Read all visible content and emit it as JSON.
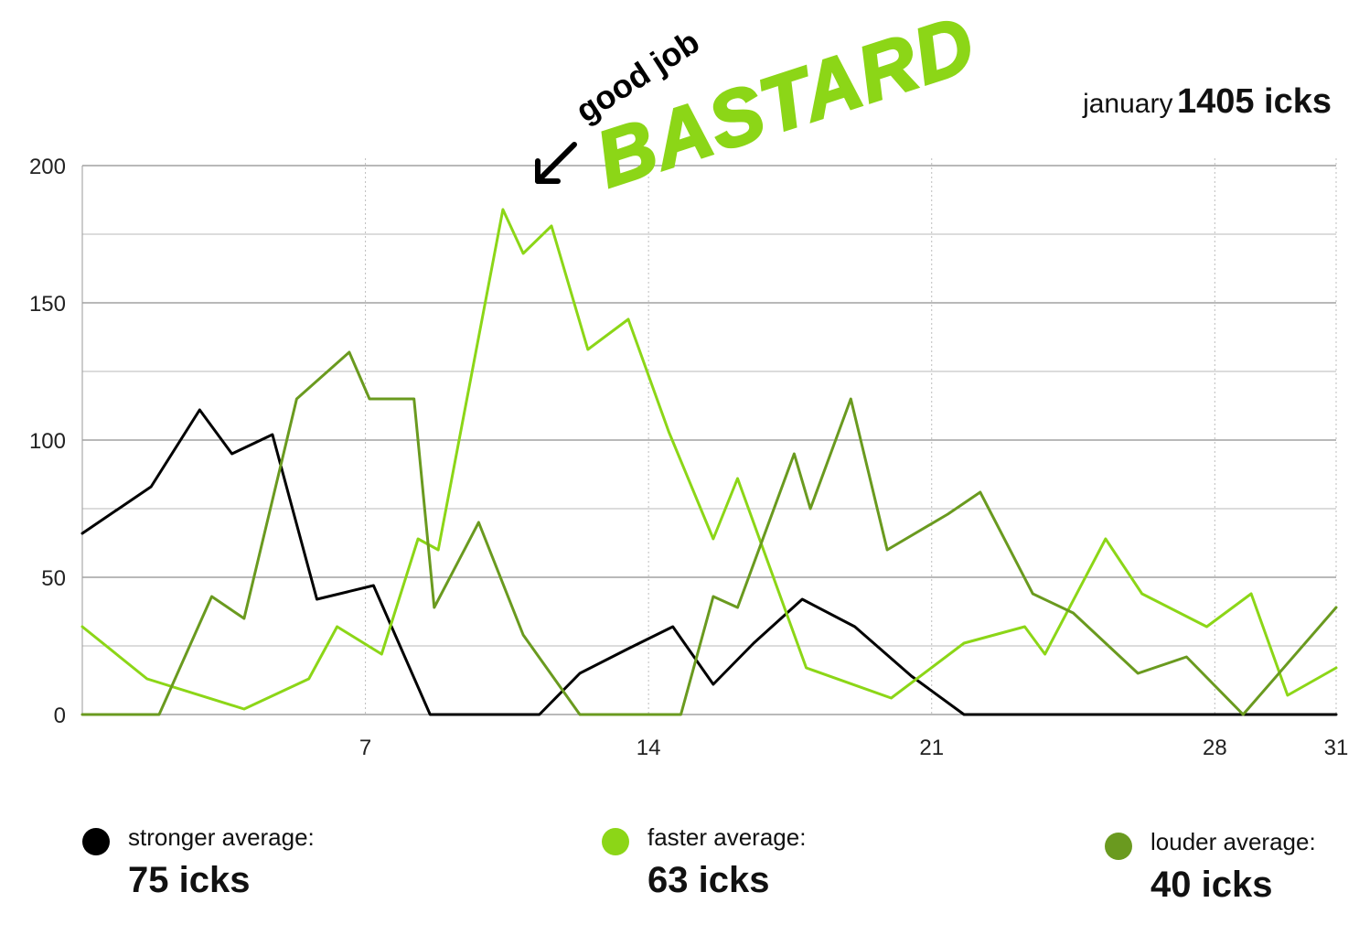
{
  "summary": {
    "month": "january",
    "total": "1405 icks"
  },
  "annotation": {
    "small": "good job",
    "big": "BASTARD",
    "color": "#8cd617"
  },
  "legend": [
    {
      "label": "stronger average:",
      "value": "75 icks",
      "color": "#000000"
    },
    {
      "label": "faster average:",
      "value": "63 icks",
      "color": "#8cd617"
    },
    {
      "label": "louder average:",
      "value": "40 icks",
      "color": "#6a9a1f"
    }
  ],
  "chart_data": {
    "type": "line",
    "title": "",
    "xlabel": "",
    "ylabel": "",
    "xlim": [
      0,
      31
    ],
    "ylim": [
      0,
      200
    ],
    "y_ticks": [
      0,
      50,
      100,
      150,
      200
    ],
    "x_ticks": [
      7,
      14,
      21,
      28,
      31
    ],
    "grid": true,
    "legend_placement": "bottom",
    "series": [
      {
        "name": "stronger",
        "color": "#000000",
        "x": [
          0,
          1.7,
          2.9,
          3.7,
          4.7,
          5.8,
          7.2,
          8.6,
          9.5,
          10.5,
          11.3,
          12.3,
          13.5,
          14.6,
          15.6,
          16.6,
          17.8,
          19.1,
          20.5,
          21.8,
          23.0,
          24.5,
          26.0,
          27.5,
          29.0,
          31.0
        ],
        "y": [
          66,
          83,
          111,
          95,
          102,
          42,
          47,
          0,
          0,
          0,
          0,
          15,
          24,
          32,
          11,
          26,
          42,
          32,
          14,
          0,
          0,
          0,
          0,
          0,
          0,
          0
        ]
      },
      {
        "name": "faster",
        "color": "#8cd617",
        "x": [
          0,
          1.6,
          4.0,
          5.6,
          6.3,
          7.4,
          8.3,
          8.8,
          10.4,
          10.9,
          11.6,
          12.5,
          13.5,
          14.5,
          15.6,
          16.2,
          17.9,
          20.0,
          21.8,
          23.3,
          23.8,
          25.3,
          26.2,
          27.8,
          28.9,
          29.8,
          31.0
        ],
        "y": [
          32,
          13,
          2,
          13,
          32,
          22,
          64,
          60,
          184,
          168,
          178,
          133,
          144,
          103,
          64,
          86,
          17,
          6,
          26,
          32,
          22,
          64,
          44,
          32,
          44,
          7,
          17
        ]
      },
      {
        "name": "louder",
        "color": "#6a9a1f",
        "x": [
          0,
          1.9,
          3.2,
          4.0,
          5.3,
          6.6,
          7.1,
          8.2,
          8.7,
          9.8,
          10.9,
          12.3,
          13.5,
          14.8,
          15.6,
          16.2,
          17.6,
          18.0,
          19.0,
          19.9,
          21.4,
          22.2,
          23.5,
          24.5,
          26.1,
          27.3,
          28.7,
          31.0
        ],
        "y": [
          0,
          0,
          43,
          35,
          115,
          132,
          115,
          115,
          39,
          70,
          29,
          0,
          0,
          0,
          43,
          39,
          95,
          75,
          115,
          60,
          73,
          81,
          44,
          37,
          15,
          21,
          0,
          39
        ]
      }
    ]
  }
}
